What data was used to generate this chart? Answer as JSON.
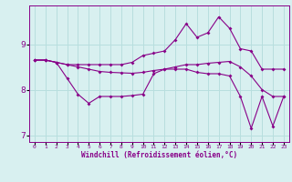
{
  "xlabel": "Windchill (Refroidissement éolien,°C)",
  "x": [
    0,
    1,
    2,
    3,
    4,
    5,
    6,
    7,
    8,
    9,
    10,
    11,
    12,
    13,
    14,
    15,
    16,
    17,
    18,
    19,
    20,
    21,
    22,
    23
  ],
  "line_top": [
    8.65,
    8.65,
    8.6,
    8.55,
    8.55,
    8.55,
    8.55,
    8.55,
    8.55,
    8.6,
    8.75,
    8.8,
    8.85,
    9.1,
    9.45,
    9.15,
    9.25,
    9.6,
    9.35,
    8.9,
    8.85,
    8.45,
    8.45,
    8.45
  ],
  "line_mid": [
    8.65,
    8.65,
    8.6,
    8.55,
    8.5,
    8.45,
    8.4,
    8.38,
    8.37,
    8.36,
    8.38,
    8.42,
    8.45,
    8.5,
    8.55,
    8.55,
    8.58,
    8.6,
    8.62,
    8.5,
    8.3,
    8.0,
    7.85,
    7.85
  ],
  "line_bot": [
    8.65,
    8.65,
    8.6,
    8.25,
    7.9,
    7.7,
    7.85,
    7.85,
    7.85,
    7.87,
    7.9,
    8.35,
    8.45,
    8.45,
    8.45,
    8.38,
    8.35,
    8.35,
    8.3,
    7.85,
    7.15,
    7.85,
    7.2,
    7.85
  ],
  "line_color": "#880088",
  "bg_color": "#d8f0f0",
  "grid_color": "#b8dede",
  "ylim": [
    6.85,
    9.85
  ],
  "yticks": [
    7,
    8,
    9
  ],
  "markersize": 2.0,
  "linewidth": 0.8
}
